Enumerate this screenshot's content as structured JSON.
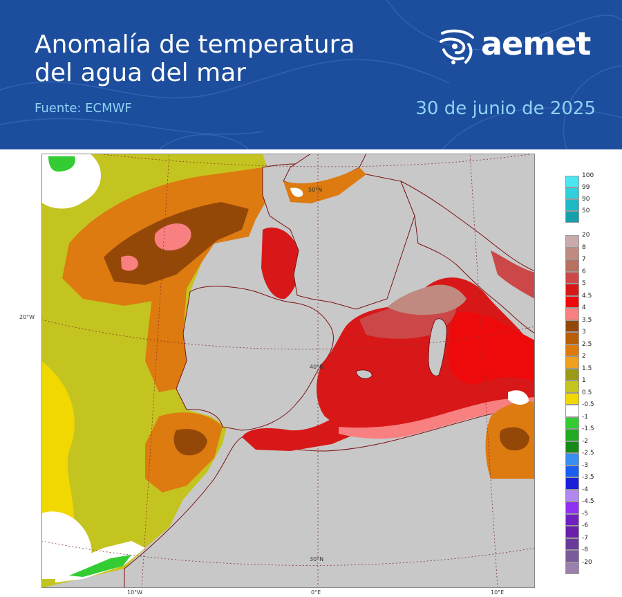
{
  "header": {
    "title_line1": "Anomalía de temperatura",
    "title_line2": "del agua del mar",
    "source": "Fuente: ECMWF",
    "date": "30 de junio de 2025",
    "logo_text": "aemet",
    "background_color": "#1d4e9e"
  },
  "map": {
    "region": "Iberian Peninsula and Western Mediterranean",
    "lat_labels": [
      "50°N",
      "40°N",
      "30°N"
    ],
    "lon_labels": [
      "20°W",
      "10°W",
      "0°E",
      "10°E"
    ],
    "land_color": "#c8c8c8"
  },
  "legend": {
    "top_scale": [
      "100",
      "99",
      "90",
      "50"
    ],
    "top_colors": [
      "#4de6f0",
      "#2fd0dc",
      "#1fb8c4",
      "#17a0ac"
    ],
    "main_scale": [
      "20",
      "8",
      "7",
      "6",
      "5",
      "4.5",
      "4",
      "3.5",
      "3",
      "2.5",
      "2",
      "1.5",
      "1",
      "0.5",
      "-0.5",
      "-1",
      "-1.5",
      "-2",
      "-2.5",
      "-3",
      "-3.5",
      "-4",
      "-4.5",
      "-5",
      "-6",
      "-7",
      "-8",
      "-20"
    ],
    "main_colors": [
      "#c8aaaa",
      "#c08a80",
      "#b87060",
      "#cc4848",
      "#d81818",
      "#ee0a0a",
      "#f88080",
      "#944808",
      "#b85e08",
      "#dd7a10",
      "#f0a020",
      "#9a9a18",
      "#c4c420",
      "#f0d800",
      "#ffffff",
      "#33cc33",
      "#22aa22",
      "#158a15",
      "#3a8ef0",
      "#1a5ef0",
      "#1a20d8",
      "#b088f0",
      "#9030f0",
      "#7020c0",
      "#6a20a8",
      "#6a3a9a",
      "#7a5a9a",
      "#9a80aa"
    ]
  }
}
